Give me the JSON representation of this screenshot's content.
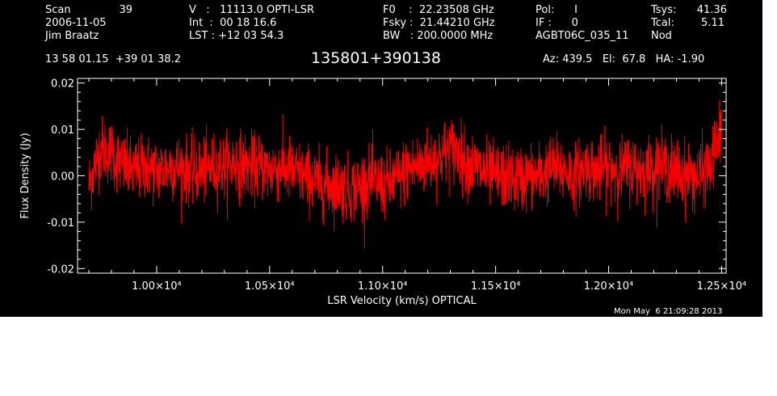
{
  "header": {
    "col1": {
      "scan_label": "Scan",
      "scan_value": "39",
      "date": "2006-11-05",
      "observer": "Jim Braatz"
    },
    "col2": {
      "v_line": "V   :   11113.0 OPTI-LSR",
      "int_line": "Int  :  00 18 16.6",
      "lst_line": "LST : +12 03 54.3"
    },
    "col3": {
      "f0_line": "F0    :  22.23508 GHz",
      "fsky_line": "Fsky :  21.44210 GHz",
      "bw_line": "BW   : 200.0000 MHz"
    },
    "col4": {
      "pol_line": "Pol:      I",
      "if_line": "IF :      0",
      "project": "AGBT06C_035_11"
    },
    "col5": {
      "tsys_label": "Tsys:",
      "tsys_value": "41.36",
      "tcal_label": "Tcal:",
      "tcal_value": "5.11",
      "mode": "Nod"
    },
    "coords": "13 58 01.15  +39 01 38.2",
    "source": "135801+390138",
    "az_el_ha": "Az: 439.5   El:  67.8   HA: -1.90"
  },
  "timestamp": "Mon May  6 21:09:28 2013",
  "chart_data": {
    "type": "line",
    "xlabel": "LSR Velocity (km/s) OPTICAL",
    "ylabel": "Flux Density (Jy)",
    "xlim": [
      9650,
      12520
    ],
    "ylim": [
      -0.021,
      0.021
    ],
    "xticks": [
      10000,
      10500,
      11000,
      11500,
      12000,
      12500
    ],
    "xtick_labels": [
      "1.00x10^4",
      "1.05x10^4",
      "1.10x10^4",
      "1.15x10^4",
      "1.20x10^4",
      "1.25x10^4"
    ],
    "yticks": [
      0.02,
      0.01,
      0.0,
      -0.01,
      -0.02
    ],
    "ytick_labels": [
      "0.02",
      "0.01",
      "0.00",
      "-0.01",
      "-0.02"
    ],
    "series": [
      {
        "color": "#ff0000",
        "x": [
          9700,
          9750,
          9800,
          9850,
          9900,
          9950,
          10000,
          10050,
          10100,
          10150,
          10200,
          10250,
          10300,
          10350,
          10400,
          10450,
          10500,
          10550,
          10600,
          10650,
          10700,
          10750,
          10800,
          10850,
          10900,
          10950,
          11000,
          11050,
          11100,
          11150,
          11200,
          11250,
          11300,
          11350,
          11400,
          11450,
          11500,
          11550,
          11600,
          11650,
          11700,
          11750,
          11800,
          11850,
          11900,
          11950,
          12000,
          12050,
          12100,
          12150,
          12200,
          12250,
          12300,
          12350,
          12400,
          12450,
          12500
        ],
        "y": [
          -0.002,
          0.006,
          0.005,
          0.002,
          0.001,
          0.002,
          0.001,
          0.002,
          0.002,
          0.001,
          0.001,
          0.002,
          0.002,
          0.003,
          0.002,
          0.002,
          0.001,
          0.002,
          0.001,
          0.0,
          -0.001,
          -0.002,
          -0.002,
          -0.003,
          -0.002,
          -0.001,
          -0.002,
          -0.001,
          0.001,
          0.002,
          0.003,
          0.004,
          0.006,
          0.004,
          0.002,
          0.001,
          0.0,
          0.0,
          -0.001,
          0.0,
          0.0,
          0.002,
          0.001,
          0.0,
          0.002,
          0.001,
          0.002,
          0.001,
          0.002,
          0.001,
          0.002,
          0.002,
          0.001,
          0.0,
          0.0,
          0.002,
          0.01
        ],
        "noise_rms": 0.0035
      }
    ]
  }
}
